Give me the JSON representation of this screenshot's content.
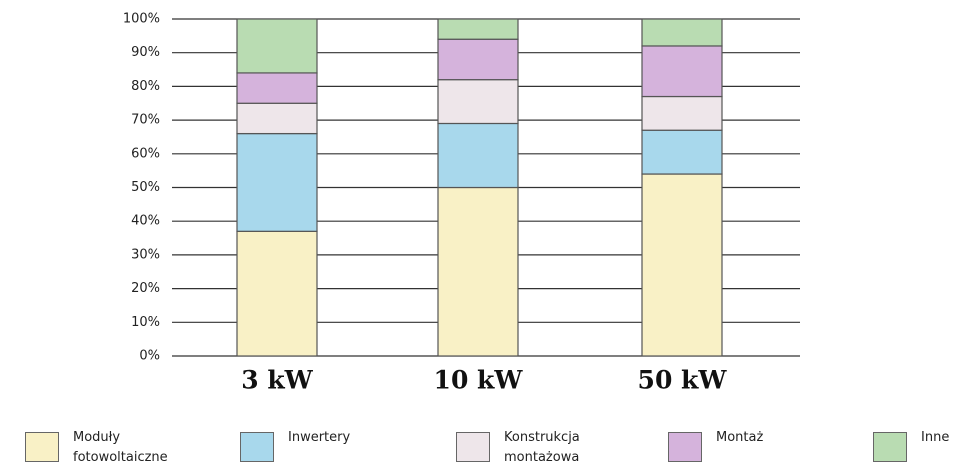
{
  "chart_data": {
    "type": "stacked_bar",
    "categories": [
      "3 kW",
      "10 kW",
      "50 kW"
    ],
    "series": [
      {
        "name": "Moduły fotowoltaiczne",
        "color": "#f9f1c6",
        "values": [
          37,
          50,
          54
        ]
      },
      {
        "name": "Inwertery",
        "color": "#a8d8ec",
        "values": [
          29,
          19,
          13
        ]
      },
      {
        "name": "Konstrukcja montażowa",
        "color": "#eee6ea",
        "values": [
          9,
          13,
          10
        ]
      },
      {
        "name": "Montaż",
        "color": "#d5b3dc",
        "values": [
          9,
          12,
          15
        ]
      },
      {
        "name": "Inne",
        "color": "#b9dcb2",
        "values": [
          16,
          6,
          8
        ]
      }
    ],
    "ylim": [
      0,
      100
    ],
    "yticks": [
      {
        "value": 0,
        "label": "0%"
      },
      {
        "value": 10,
        "label": "10%"
      },
      {
        "value": 20,
        "label": "20%"
      },
      {
        "value": 30,
        "label": "30%"
      },
      {
        "value": 40,
        "label": "40%"
      },
      {
        "value": 50,
        "label": "50%"
      },
      {
        "value": 60,
        "label": "60%"
      },
      {
        "value": 70,
        "label": "70%"
      },
      {
        "value": 80,
        "label": "80%"
      },
      {
        "value": 90,
        "label": "90%"
      },
      {
        "value": 100,
        "label": "100%"
      }
    ],
    "grid": true
  }
}
